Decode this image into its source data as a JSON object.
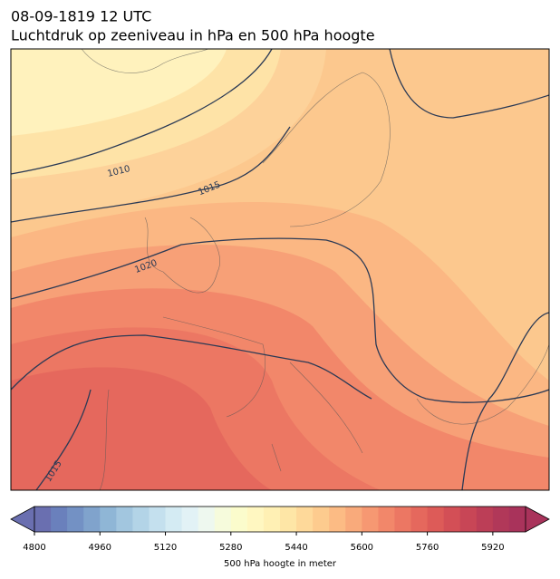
{
  "header": {
    "title": "08-09-1819 12 UTC",
    "subtitle": "Luchtdruk op zeeniveau in hPa en 500 hPa hoogte"
  },
  "contour_labels": [
    1010,
    1015,
    1020,
    1015
  ],
  "colorbar": {
    "label": "500 hPa hoogte in meter",
    "lim": [
      4800,
      6000
    ],
    "ticks": [
      4800,
      4960,
      5120,
      5280,
      5440,
      5600,
      5760,
      5920
    ],
    "colors": [
      "#6a6fb0",
      "#6a80bc",
      "#7391c4",
      "#80a3cc",
      "#8fb6d6",
      "#a2c6df",
      "#b3d4e7",
      "#c4e0ee",
      "#d4ebf3",
      "#e2f2f6",
      "#eef8ef",
      "#f6fbdc",
      "#fbfccc",
      "#fff7c1",
      "#fff0b4",
      "#fee6a6",
      "#fed99a",
      "#fdcb8e",
      "#fcbb84",
      "#f9aa7b",
      "#f69872",
      "#f2876a",
      "#ec7763",
      "#e5685d",
      "#dd5b58",
      "#d34f56",
      "#c84656",
      "#bc3e57",
      "#b13859",
      "#a9335b"
    ]
  }
}
